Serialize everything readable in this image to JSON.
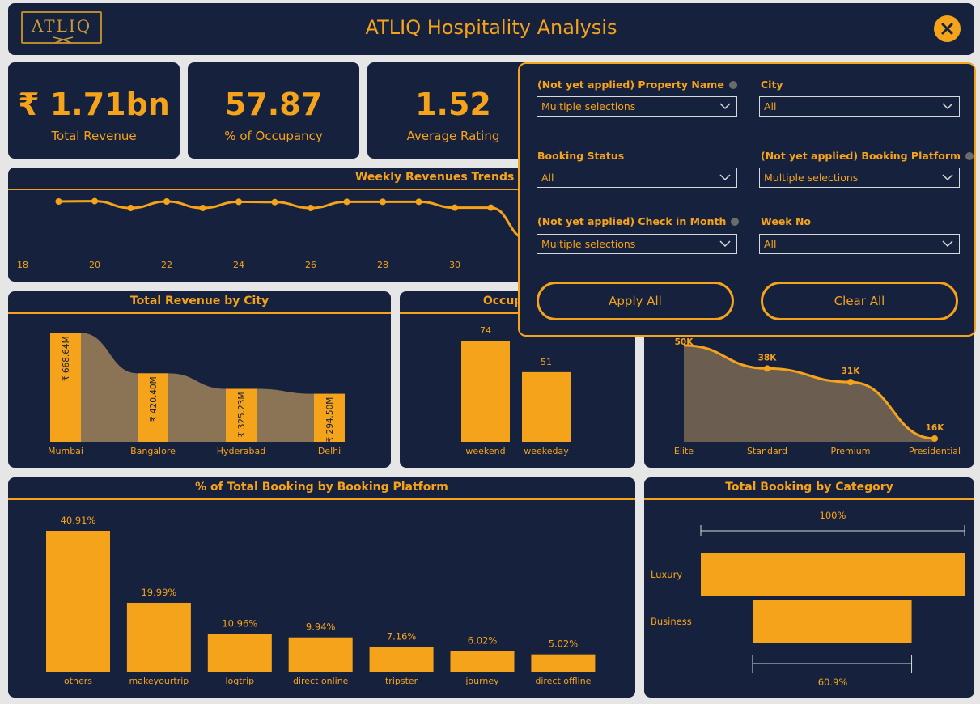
{
  "header": {
    "title": "ATLIQ Hospitality Analysis",
    "logo_text": "ATLIQ"
  },
  "kpis": [
    {
      "value": "₹ 1.71bn",
      "label": "Total Revenue"
    },
    {
      "value": "57.87",
      "label": "% of Occupancy"
    },
    {
      "value": "1.52",
      "label": "Average Rating"
    }
  ],
  "panels": {
    "weekly": "Weekly Revenues Trends by Week Number",
    "city": "Total Revenue by City",
    "occupancy": "Occupancy",
    "platform": "% of Total Booking by Booking Platform",
    "category": "Total Booking by Category"
  },
  "filters": {
    "property_label": "(Not yet applied) Property Name",
    "property_value": "Multiple selections",
    "city_label": "City",
    "city_value": "All",
    "status_label": "Booking Status",
    "status_value": "All",
    "platform_label": "(Not yet applied) Booking Platform",
    "platform_value": "Multiple selections",
    "month_label": "(Not yet applied) Check in Month",
    "month_value": "Multiple selections",
    "week_label": "Week No",
    "week_value": "All",
    "apply_label": "Apply All",
    "clear_label": "Clear All"
  },
  "colors": {
    "background": "#16213e",
    "accent": "#f5a31a",
    "ribbon": "#8b7355"
  },
  "chart_data": [
    {
      "type": "line",
      "title": "Weekly Revenues Trends by Week Number",
      "x": [
        19,
        20,
        21,
        22,
        23,
        24,
        25,
        26,
        27,
        28,
        29,
        30,
        31,
        32
      ],
      "values": [
        49.5,
        49.6,
        47.5,
        49.5,
        47.5,
        49.4,
        49.3,
        47.5,
        49.4,
        49.4,
        49.4,
        47.6,
        47.6,
        38
      ],
      "xticks": [
        "18",
        "20",
        "22",
        "24",
        "26",
        "28",
        "30"
      ],
      "xlim": [
        18,
        32
      ],
      "ylim": [
        30,
        55
      ]
    },
    {
      "type": "bar",
      "title": "Total Revenue by City",
      "categories": [
        "Mumbai",
        "Bangalore",
        "Hyderabad",
        "Delhi"
      ],
      "values": [
        668.64,
        420.4,
        325.23,
        294.5
      ],
      "labels": [
        "₹ 668.64M",
        "₹ 420.40M",
        "₹ 325.23M",
        "₹ 294.50M"
      ],
      "ylim": [
        0,
        700
      ]
    },
    {
      "type": "bar",
      "title": "Occupancy",
      "categories": [
        "weekend",
        "weekeday"
      ],
      "values": [
        74,
        51
      ],
      "labels": [
        "74",
        "51"
      ],
      "ylim": [
        0,
        80
      ]
    },
    {
      "type": "area",
      "categories": [
        "Elite",
        "Standard",
        "Premium",
        "Presidential"
      ],
      "values": [
        50,
        38,
        31,
        16
      ],
      "labels": [
        "50K",
        "38K",
        "31K",
        "16K"
      ],
      "ylim": [
        0,
        60
      ]
    },
    {
      "type": "bar",
      "title": "% of Total Booking by Booking Platform",
      "categories": [
        "others",
        "makeyourtrip",
        "logtrip",
        "direct online",
        "tripster",
        "journey",
        "direct offline"
      ],
      "values": [
        40.91,
        19.99,
        10.96,
        9.94,
        7.16,
        6.02,
        5.02
      ],
      "labels": [
        "40.91%",
        "19.99%",
        "10.96%",
        "9.94%",
        "7.16%",
        "6.02%",
        "5.02%"
      ],
      "ylim": [
        0,
        45
      ]
    },
    {
      "type": "bar",
      "title": "Total Booking by Category",
      "categories": [
        "Luxury",
        "Business"
      ],
      "values": [
        100,
        60.9
      ],
      "labels": [
        "100%",
        "60.9%"
      ]
    }
  ]
}
